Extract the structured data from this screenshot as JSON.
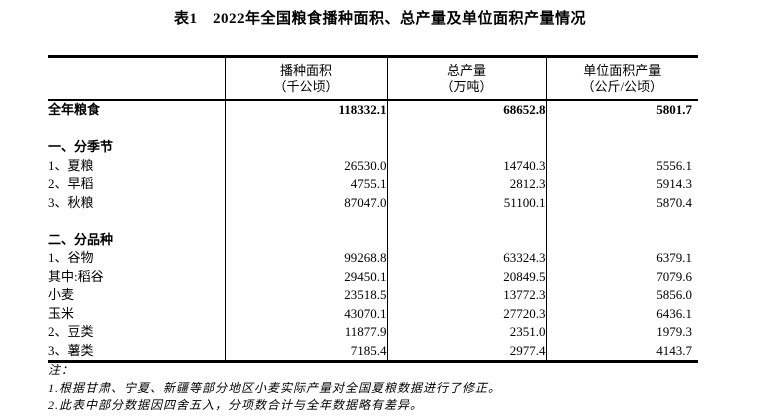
{
  "title": "表1　2022年全国粮食播种面积、总产量及单位面积产量情况",
  "table": {
    "columns": [
      {
        "line1": "",
        "line2": ""
      },
      {
        "line1": "播种面积",
        "line2": "（千公顷）"
      },
      {
        "line1": "总产量",
        "line2": "（万吨）"
      },
      {
        "line1": "单位面积产量",
        "line2": "（公斤/公顷）"
      }
    ],
    "rows": [
      {
        "label": "全年粮食",
        "values": [
          "118332.1",
          "68652.8",
          "5801.7"
        ]
      },
      {
        "label": "",
        "values": [
          "",
          "",
          ""
        ]
      },
      {
        "label": "一、分季节",
        "values": [
          "",
          "",
          ""
        ]
      },
      {
        "label": "1、夏粮",
        "values": [
          "26530.0",
          "14740.3",
          "5556.1"
        ]
      },
      {
        "label": "2、早稻",
        "values": [
          "4755.1",
          "2812.3",
          "5914.3"
        ]
      },
      {
        "label": "3、秋粮",
        "values": [
          "87047.0",
          "51100.1",
          "5870.4"
        ]
      },
      {
        "label": "",
        "values": [
          "",
          "",
          ""
        ]
      },
      {
        "label": "二、分品种",
        "values": [
          "",
          "",
          ""
        ]
      },
      {
        "label": "1、谷物",
        "values": [
          "99268.8",
          "63324.3",
          "6379.1"
        ]
      },
      {
        "label": "其中:稻谷",
        "values": [
          "29450.1",
          "20849.5",
          "7079.6"
        ]
      },
      {
        "label": "小麦",
        "values": [
          "23518.5",
          "13772.3",
          "5856.0"
        ]
      },
      {
        "label": "玉米",
        "values": [
          "43070.1",
          "27720.3",
          "6436.1"
        ]
      },
      {
        "label": "2、豆类",
        "values": [
          "11877.9",
          "2351.0",
          "1979.3"
        ]
      },
      {
        "label": "3、薯类",
        "values": [
          "7185.4",
          "2977.4",
          "4143.7"
        ]
      }
    ]
  },
  "notes": {
    "label": "注：",
    "items": [
      "1.根据甘肃、宁夏、新疆等部分地区小麦实际产量对全国夏粮数据进行了修正。",
      "2.此表中部分数据因四舍五入，分项数合计与全年数据略有差异。"
    ]
  }
}
